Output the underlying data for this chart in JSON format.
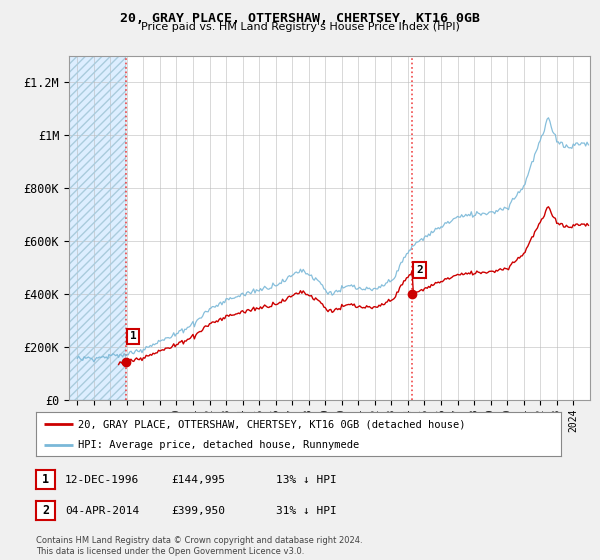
{
  "title": "20, GRAY PLACE, OTTERSHAW, CHERTSEY, KT16 0GB",
  "subtitle": "Price paid vs. HM Land Registry's House Price Index (HPI)",
  "hpi_label": "HPI: Average price, detached house, Runnymede",
  "property_label": "20, GRAY PLACE, OTTERSHAW, CHERTSEY, KT16 0GB (detached house)",
  "sale1_date": "12-DEC-1996",
  "sale1_price": 144995,
  "sale1_note": "13% ↓ HPI",
  "sale2_date": "04-APR-2014",
  "sale2_price": 399950,
  "sale2_note": "31% ↓ HPI",
  "sale1_x": 1996.92,
  "sale2_x": 2014.25,
  "ylim": [
    0,
    1300000
  ],
  "xlim_start": 1993.5,
  "xlim_end": 2025.0,
  "hpi_color": "#7ab8d8",
  "property_color": "#cc0000",
  "footnote": "Contains HM Land Registry data © Crown copyright and database right 2024.\nThis data is licensed under the Open Government Licence v3.0.",
  "background_color": "#f0f0f0",
  "plot_bg_color": "#ffffff",
  "pre_bg_color": "#ddeeff",
  "grid_color": "#bbbbbb",
  "yticks": [
    0,
    200000,
    400000,
    600000,
    800000,
    1000000,
    1200000
  ],
  "ytick_labels": [
    "£0",
    "£200K",
    "£400K",
    "£600K",
    "£800K",
    "£1M",
    "£1.2M"
  ],
  "xticks": [
    1994,
    1995,
    1996,
    1997,
    1998,
    1999,
    2000,
    2001,
    2002,
    2003,
    2004,
    2005,
    2006,
    2007,
    2008,
    2009,
    2010,
    2011,
    2012,
    2013,
    2014,
    2015,
    2016,
    2017,
    2018,
    2019,
    2020,
    2021,
    2022,
    2023,
    2024
  ]
}
